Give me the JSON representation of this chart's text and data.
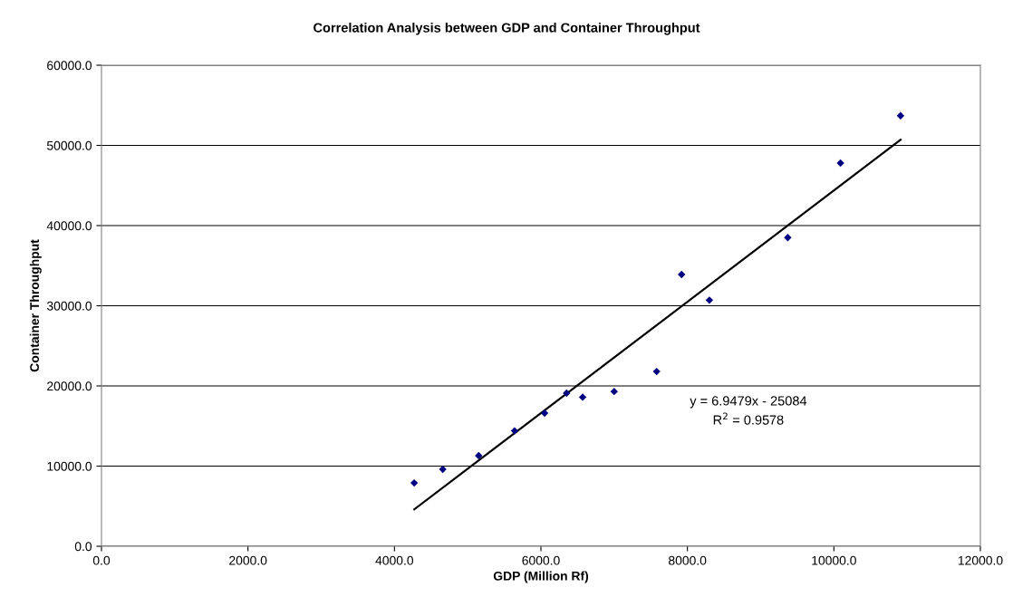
{
  "chart_data": {
    "type": "scatter",
    "title": "Correlation Analysis between GDP and Container Throughput",
    "xlabel": "GDP (Million Rf)",
    "ylabel": "Container Throughput",
    "series": [
      {
        "color": "#000080",
        "marker": "diamond",
        "x": [
          4270,
          4660,
          5150,
          5640,
          6050,
          6350,
          6570,
          7000,
          7580,
          7920,
          8300,
          9370,
          10090,
          10910
        ],
        "values": [
          7900,
          9600,
          11300,
          14400,
          16600,
          19100,
          18600,
          19300,
          21800,
          33900,
          30700,
          38500,
          47800,
          53700
        ]
      },
      {
        "type": "line",
        "color": "#000000",
        "marker": "none",
        "x": [
          4270,
          10910
        ],
        "values": [
          4600,
          50700
        ]
      }
    ],
    "xlim": [
      0,
      12000
    ],
    "ylim": [
      0,
      60000
    ],
    "xticks": [
      {
        "value": 0,
        "label": "0.0"
      },
      {
        "value": 2000,
        "label": "2000.0"
      },
      {
        "value": 4000,
        "label": "4000.0"
      },
      {
        "value": 6000,
        "label": "6000.0"
      },
      {
        "value": 8000,
        "label": "8000.0"
      },
      {
        "value": 10000,
        "label": "10000.0"
      },
      {
        "value": 12000,
        "label": "12000.0"
      }
    ],
    "yticks": [
      {
        "value": 0,
        "label": "0.0"
      },
      {
        "value": 10000,
        "label": "10000.0"
      },
      {
        "value": 20000,
        "label": "20000.0"
      },
      {
        "value": 30000,
        "label": "30000.0"
      },
      {
        "value": 40000,
        "label": "40000.0"
      },
      {
        "value": 50000,
        "label": "50000.0"
      },
      {
        "value": 60000,
        "label": "60000.0"
      }
    ],
    "grid": "y",
    "annotations": [
      "y = 6.9479x - 25084",
      "R$^{2}$ = 0.9578"
    ]
  }
}
